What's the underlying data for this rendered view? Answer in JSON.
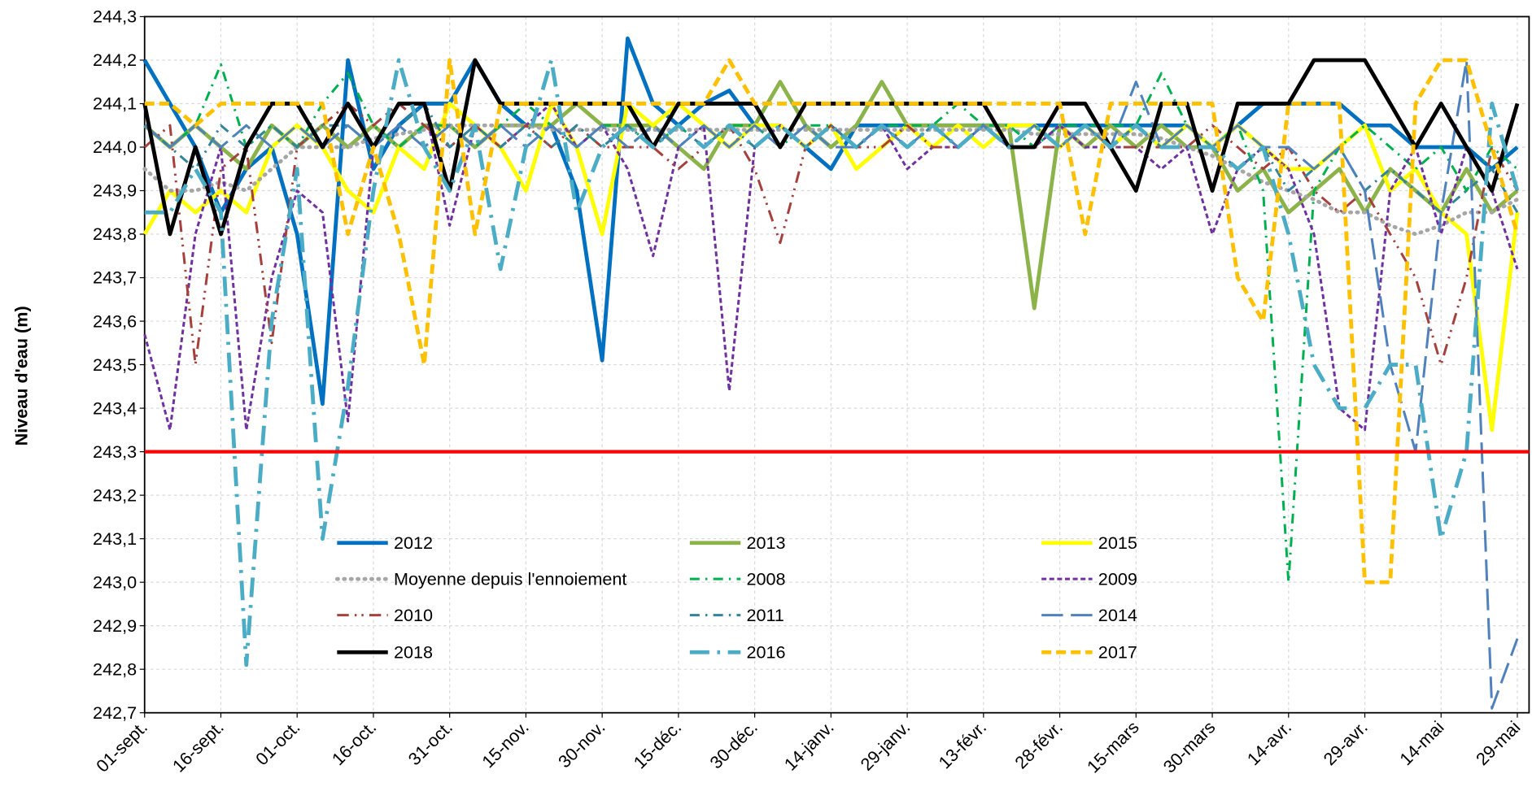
{
  "chart_data": {
    "type": "line",
    "y_label": "Niveau d'eau (m)",
    "categories": [
      "01-sept.",
      null,
      null,
      "16-sept.",
      null,
      null,
      "01-oct.",
      null,
      null,
      "16-oct.",
      null,
      null,
      "31-oct.",
      null,
      null,
      "15-nov.",
      null,
      null,
      "30-nov.",
      null,
      null,
      "15-déc.",
      null,
      null,
      "30-déc.",
      null,
      null,
      "14-janv.",
      null,
      null,
      "29-janv.",
      null,
      null,
      "13-févr.",
      null,
      null,
      "28-févr.",
      null,
      null,
      "15-mars",
      null,
      null,
      "30-mars",
      null,
      null,
      "14-avr.",
      null,
      null,
      "29-avr.",
      null,
      null,
      "14-mai",
      null,
      null,
      "29-mai"
    ],
    "ylim": [
      242.7,
      244.3
    ],
    "yticks": [
      {
        "value": 242.7,
        "label": "242,7"
      },
      {
        "value": 242.8,
        "label": "242,8"
      },
      {
        "value": 242.9,
        "label": "242,9"
      },
      {
        "value": 243.0,
        "label": "243,0"
      },
      {
        "value": 243.1,
        "label": "243,1"
      },
      {
        "value": 243.2,
        "label": "243,2"
      },
      {
        "value": 243.3,
        "label": "243,3"
      },
      {
        "value": 243.4,
        "label": "243,4"
      },
      {
        "value": 243.5,
        "label": "243,5"
      },
      {
        "value": 243.6,
        "label": "243,6"
      },
      {
        "value": 243.7,
        "label": "243,7"
      },
      {
        "value": 243.8,
        "label": "243,8"
      },
      {
        "value": 243.9,
        "label": "243,9"
      },
      {
        "value": 244.0,
        "label": "244,0"
      },
      {
        "value": 244.1,
        "label": "244,1"
      },
      {
        "value": 244.2,
        "label": "244,2"
      },
      {
        "value": 244.3,
        "label": "244,3"
      }
    ],
    "grid": true,
    "reference_line": {
      "value": 243.3,
      "color": "#ff0000"
    },
    "series": [
      {
        "name": "2012",
        "color": "#0070c0",
        "dash": "solid",
        "values": [
          244.2,
          244.1,
          244.0,
          243.85,
          243.95,
          244.0,
          243.8,
          243.41,
          244.2,
          243.95,
          244.05,
          244.1,
          244.1,
          244.2,
          244.1,
          244.05,
          244.05,
          243.9,
          243.51,
          244.25,
          244.1,
          244.05,
          244.1,
          244.13,
          244.05,
          244.05,
          244.0,
          243.95,
          244.05,
          244.05,
          244.05,
          244.05,
          244.05,
          244.05,
          244.05,
          244.05,
          244.05,
          244.05,
          244.05,
          244.05,
          244.05,
          244.05,
          244.0,
          244.05,
          244.1,
          244.1,
          244.1,
          244.1,
          244.05,
          244.05,
          244.0,
          244.0,
          244.0,
          243.95,
          244.0
        ]
      },
      {
        "name": "2013",
        "color": "#8cb34a",
        "dash": "solid",
        "values": [
          244.05,
          244.0,
          244.05,
          244.0,
          243.95,
          244.05,
          244.0,
          244.05,
          244.0,
          244.05,
          244.0,
          244.05,
          244.05,
          244.0,
          244.05,
          244.05,
          244.05,
          244.1,
          244.05,
          244.05,
          244.05,
          244.0,
          243.95,
          244.05,
          244.05,
          244.15,
          244.05,
          244.0,
          244.05,
          244.15,
          244.05,
          244.05,
          244.05,
          244.05,
          244.05,
          243.63,
          244.05,
          244.0,
          244.05,
          244.0,
          244.05,
          244.0,
          244.0,
          243.9,
          243.95,
          243.85,
          243.9,
          243.95,
          243.85,
          243.95,
          243.9,
          243.85,
          243.95,
          243.85,
          243.9
        ]
      },
      {
        "name": "2015",
        "color": "#ffff00",
        "dash": "solid",
        "values": [
          243.8,
          243.9,
          243.85,
          243.9,
          243.85,
          244.0,
          244.05,
          244.0,
          243.9,
          243.85,
          244.0,
          243.95,
          244.1,
          244.05,
          244.0,
          243.9,
          244.1,
          244.0,
          243.8,
          244.1,
          244.05,
          244.1,
          244.05,
          244.0,
          244.05,
          244.05,
          244.0,
          244.05,
          243.95,
          244.0,
          244.05,
          244.0,
          244.05,
          244.0,
          244.05,
          244.05,
          244.0,
          244.05,
          244.0,
          244.05,
          244.0,
          244.05,
          244.0,
          244.05,
          244.0,
          243.95,
          243.95,
          244.0,
          244.05,
          243.9,
          243.95,
          243.85,
          243.8,
          243.35,
          243.85
        ]
      },
      {
        "name": "Moyenne depuis l'ennoiement",
        "color": "#a6a6a6",
        "dash": "dotted",
        "values": [
          243.95,
          243.9,
          243.9,
          243.92,
          243.9,
          243.95,
          244.0,
          244.0,
          244.0,
          244.02,
          244.03,
          244.04,
          244.05,
          244.05,
          244.05,
          244.05,
          244.04,
          244.04,
          244.04,
          244.04,
          244.04,
          244.04,
          244.04,
          244.04,
          244.04,
          244.04,
          244.04,
          244.04,
          244.04,
          244.04,
          244.04,
          244.04,
          244.04,
          244.04,
          244.04,
          244.03,
          244.03,
          244.03,
          244.03,
          244.03,
          244.02,
          244.0,
          243.98,
          243.95,
          243.92,
          243.9,
          243.88,
          243.85,
          243.85,
          243.82,
          243.8,
          243.82,
          243.85,
          243.85,
          243.88
        ]
      },
      {
        "name": "2008",
        "color": "#00b050",
        "dash": "dash-dot",
        "values": [
          244.05,
          244.0,
          244.05,
          244.19,
          244.0,
          244.05,
          244.0,
          244.1,
          244.17,
          244.05,
          244.0,
          244.05,
          244.05,
          244.0,
          244.05,
          244.1,
          244.05,
          244.0,
          244.05,
          244.05,
          244.0,
          244.05,
          244.0,
          244.05,
          244.05,
          244.0,
          244.05,
          244.05,
          244.0,
          244.05,
          244.05,
          244.05,
          244.1,
          244.05,
          244.05,
          244.0,
          244.05,
          244.05,
          244.05,
          244.05,
          244.17,
          244.05,
          244.0,
          244.05,
          243.9,
          243.0,
          243.9,
          244.0,
          244.05,
          244.0,
          243.95,
          244.0,
          243.9,
          244.0,
          243.95
        ]
      },
      {
        "name": "2009",
        "color": "#7030a0",
        "dash": "short-dash",
        "values": [
          243.57,
          243.35,
          243.8,
          244.0,
          243.35,
          243.7,
          243.9,
          243.85,
          243.37,
          244.0,
          244.1,
          244.1,
          243.82,
          244.05,
          244.0,
          244.05,
          244.1,
          244.0,
          244.05,
          243.95,
          243.75,
          244.0,
          244.05,
          243.44,
          244.0,
          244.05,
          244.0,
          244.05,
          244.0,
          244.05,
          243.95,
          244.0,
          244.0,
          244.05,
          244.0,
          244.0,
          244.05,
          244.0,
          244.0,
          244.0,
          243.95,
          244.0,
          243.8,
          243.95,
          244.0,
          243.95,
          243.8,
          243.4,
          243.35,
          243.9,
          244.0,
          243.8,
          244.0,
          243.9,
          243.72
        ]
      },
      {
        "name": "2010",
        "color": "#a5403d",
        "dash": "dash-dot-dot",
        "values": [
          244.0,
          244.05,
          243.5,
          243.95,
          244.0,
          243.55,
          244.0,
          244.05,
          244.1,
          244.05,
          244.1,
          244.05,
          244.0,
          244.05,
          244.0,
          244.05,
          244.0,
          244.05,
          244.0,
          244.0,
          244.0,
          243.95,
          244.0,
          244.05,
          243.95,
          243.78,
          244.0,
          244.05,
          244.0,
          244.0,
          244.05,
          244.0,
          244.0,
          244.05,
          244.0,
          244.0,
          244.0,
          244.05,
          244.0,
          244.0,
          244.0,
          244.0,
          244.05,
          244.0,
          243.95,
          244.0,
          243.9,
          243.85,
          243.9,
          243.8,
          243.7,
          243.5,
          243.7,
          244.0,
          243.9
        ]
      },
      {
        "name": "2011",
        "color": "#31849b",
        "dash": "dash-dot",
        "values": [
          244.05,
          244.0,
          243.95,
          244.05,
          244.0,
          244.05,
          244.0,
          244.05,
          244.05,
          244.0,
          244.05,
          244.1,
          244.0,
          244.05,
          244.0,
          244.05,
          244.0,
          244.05,
          244.0,
          244.05,
          244.0,
          244.05,
          244.0,
          244.05,
          244.0,
          244.05,
          244.0,
          244.05,
          244.0,
          244.05,
          244.0,
          244.05,
          244.0,
          244.05,
          244.0,
          244.05,
          244.0,
          244.05,
          244.0,
          244.05,
          244.0,
          244.05,
          244.0,
          243.95,
          244.0,
          243.9,
          243.95,
          244.0,
          243.9,
          243.95,
          243.9,
          243.85,
          243.9,
          243.95,
          243.85
        ]
      },
      {
        "name": "2014",
        "color": "#4f81bd",
        "dash": "long-dash",
        "values": [
          244.05,
          244.0,
          244.05,
          244.0,
          244.05,
          244.0,
          244.05,
          244.0,
          244.05,
          244.0,
          244.05,
          244.0,
          244.05,
          244.0,
          244.05,
          244.0,
          244.05,
          244.0,
          244.05,
          244.0,
          244.05,
          244.0,
          244.05,
          244.0,
          244.05,
          244.0,
          244.05,
          244.0,
          244.0,
          244.05,
          244.0,
          244.05,
          244.0,
          244.05,
          244.0,
          244.05,
          244.0,
          244.05,
          244.0,
          244.15,
          244.0,
          244.05,
          244.0,
          244.05,
          244.0,
          244.0,
          243.95,
          244.0,
          243.9,
          243.5,
          243.3,
          243.85,
          244.2,
          242.71,
          242.87
        ]
      },
      {
        "name": "2018",
        "color": "#000000",
        "dash": "solid",
        "values": [
          244.1,
          243.8,
          244.0,
          243.8,
          244.0,
          244.1,
          244.1,
          244.0,
          244.1,
          244.0,
          244.1,
          244.1,
          243.9,
          244.2,
          244.1,
          244.1,
          244.1,
          244.1,
          244.1,
          244.1,
          244.0,
          244.1,
          244.1,
          244.1,
          244.1,
          244.0,
          244.1,
          244.1,
          244.1,
          244.1,
          244.1,
          244.1,
          244.1,
          244.1,
          244.0,
          244.0,
          244.1,
          244.1,
          244.0,
          243.9,
          244.1,
          244.1,
          243.9,
          244.1,
          244.1,
          244.1,
          244.2,
          244.2,
          244.2,
          244.1,
          244.0,
          244.1,
          244.0,
          243.9,
          244.1
        ]
      },
      {
        "name": "2016",
        "color": "#4bacc6",
        "dash": "long-dash-dot",
        "values": [
          243.85,
          243.85,
          243.95,
          243.85,
          242.81,
          243.6,
          243.95,
          243.1,
          243.45,
          243.9,
          244.2,
          244.0,
          243.9,
          244.05,
          243.72,
          244.0,
          244.2,
          243.85,
          244.0,
          244.05,
          244.0,
          244.05,
          244.0,
          244.05,
          244.0,
          244.05,
          244.0,
          244.05,
          244.0,
          244.05,
          244.0,
          244.05,
          244.0,
          244.05,
          244.0,
          244.05,
          244.0,
          244.05,
          244.0,
          244.05,
          244.0,
          244.0,
          244.0,
          243.95,
          244.0,
          243.8,
          243.5,
          243.4,
          243.4,
          243.5,
          243.5,
          243.1,
          243.3,
          244.1,
          243.9
        ]
      },
      {
        "name": "2017",
        "color": "#ffc000",
        "dash": "dash",
        "values": [
          244.1,
          244.1,
          244.05,
          244.1,
          244.1,
          244.1,
          244.1,
          244.1,
          243.8,
          244.0,
          243.8,
          243.5,
          244.2,
          243.8,
          244.1,
          244.1,
          244.1,
          244.1,
          244.1,
          244.1,
          244.1,
          244.1,
          244.1,
          244.2,
          244.1,
          244.1,
          244.1,
          244.1,
          244.1,
          244.1,
          244.1,
          244.1,
          244.1,
          244.1,
          244.1,
          244.1,
          244.1,
          243.8,
          244.1,
          244.1,
          244.1,
          244.1,
          244.1,
          243.7,
          243.6,
          244.1,
          244.1,
          244.1,
          243.0,
          243.0,
          244.1,
          244.2,
          244.2,
          244.0,
          243.8
        ]
      }
    ]
  }
}
